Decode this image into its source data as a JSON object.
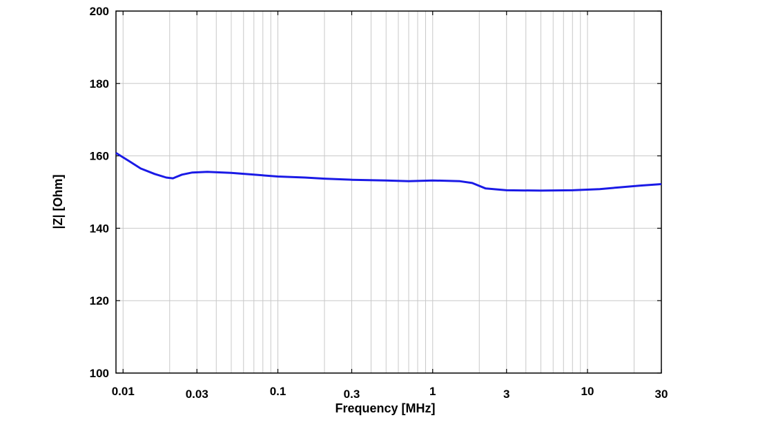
{
  "chart_data": {
    "type": "line",
    "title": "",
    "xlabel": "Frequency [MHz]",
    "ylabel": "|Z| [Ohm]",
    "x_scale": "log",
    "xlim": [
      0.009,
      30
    ],
    "ylim": [
      100,
      200
    ],
    "x_ticks": [
      {
        "value": 0.01,
        "label": "0.01"
      },
      {
        "value": 0.03,
        "label": "0.03"
      },
      {
        "value": 0.1,
        "label": "0.1"
      },
      {
        "value": 0.3,
        "label": "0.3"
      },
      {
        "value": 1,
        "label": "1"
      },
      {
        "value": 3,
        "label": "3"
      },
      {
        "value": 10,
        "label": "10"
      },
      {
        "value": 30,
        "label": "30"
      }
    ],
    "y_ticks": [
      {
        "value": 100,
        "label": "100"
      },
      {
        "value": 120,
        "label": "120"
      },
      {
        "value": 140,
        "label": "140"
      },
      {
        "value": 160,
        "label": "160"
      },
      {
        "value": 180,
        "label": "180"
      },
      {
        "value": 200,
        "label": "200"
      }
    ],
    "grid": true,
    "series": [
      {
        "color": "#1a1ae6",
        "x": [
          0.009,
          0.011,
          0.013,
          0.016,
          0.019,
          0.021,
          0.024,
          0.028,
          0.035,
          0.05,
          0.07,
          0.1,
          0.15,
          0.2,
          0.3,
          0.5,
          0.7,
          1.0,
          1.5,
          1.8,
          2.2,
          3.0,
          5.0,
          8.0,
          12.0,
          16.0,
          22.0,
          30.0
        ],
        "y": [
          160.8,
          158.5,
          156.5,
          155.0,
          154.0,
          153.8,
          154.8,
          155.4,
          155.6,
          155.3,
          154.8,
          154.3,
          154.0,
          153.7,
          153.4,
          153.2,
          153.0,
          153.2,
          153.0,
          152.5,
          151.0,
          150.5,
          150.4,
          150.5,
          150.8,
          151.3,
          151.8,
          152.2
        ]
      }
    ]
  }
}
